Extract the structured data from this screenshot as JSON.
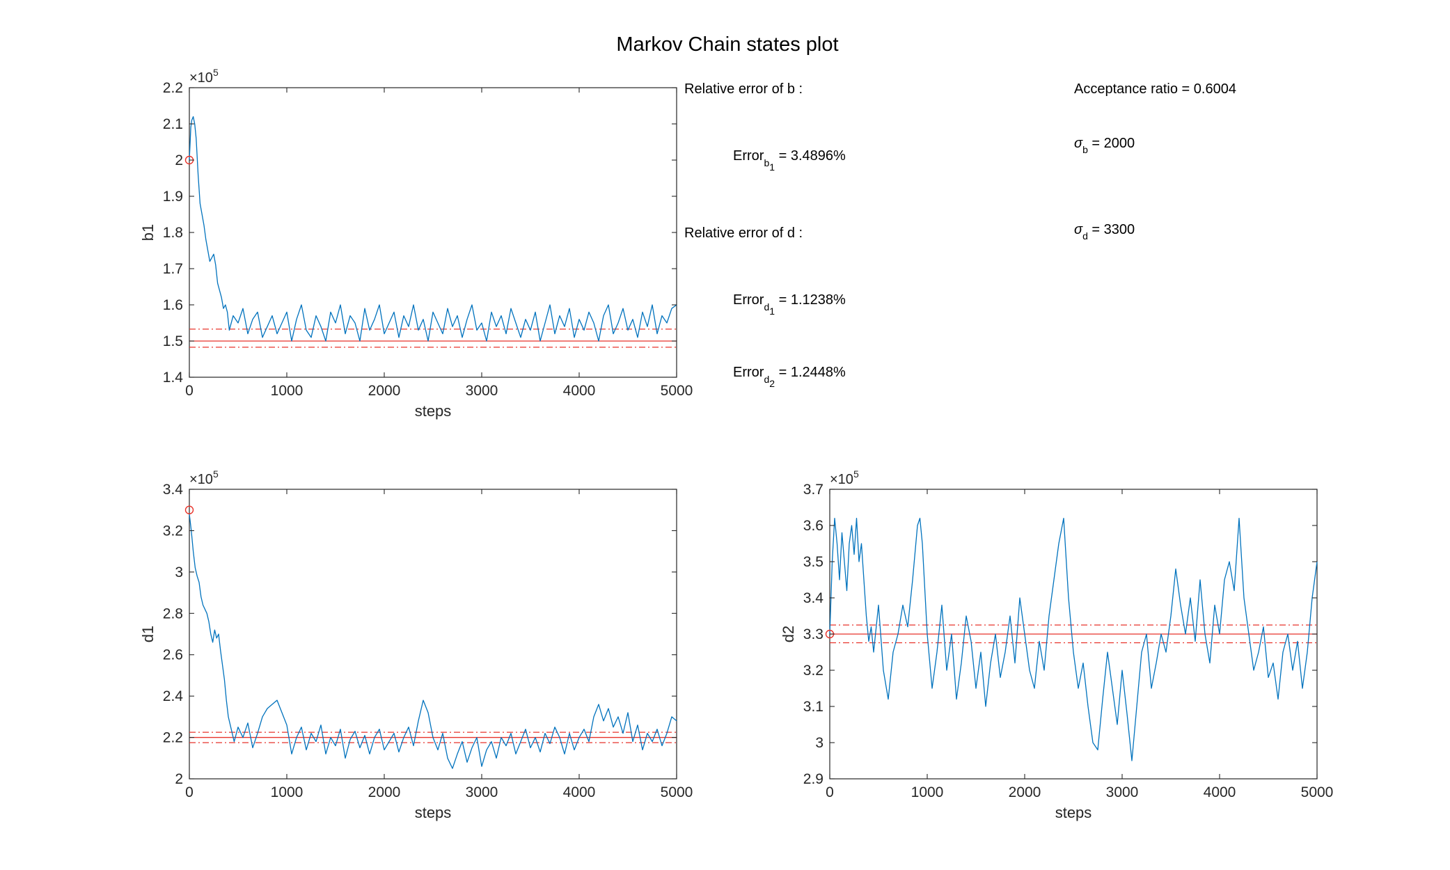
{
  "title": "Markov Chain states plot",
  "colors": {
    "trace": "#0072BD",
    "reference": "#E8332A",
    "axis": "#262626"
  },
  "annotations": {
    "rel_err_b": "Relative error of b :",
    "err_b1_base": "Error",
    "err_b1_sub": "b",
    "err_b1_subsub": "1",
    "err_b1_value": " = 3.4896%",
    "rel_err_d": "Relative error of d :",
    "err_d1_base": "Error",
    "err_d1_sub": "d",
    "err_d1_subsub": "1",
    "err_d1_value": " = 1.1238%",
    "err_d2_base": "Error",
    "err_d2_sub": "d",
    "err_d2_subsub": "2",
    "err_d2_value": " = 1.2448%",
    "acceptance": "Acceptance ratio = 0.6004",
    "sigma_b_symbol": "σ",
    "sigma_b_sub": "b",
    "sigma_b_value": " = 2000",
    "sigma_d_symbol": "σ",
    "sigma_d_sub": "d",
    "sigma_d_value": " = 3300"
  },
  "chart_data": [
    {
      "id": "b1",
      "type": "line",
      "xlabel": "steps",
      "ylabel": "b1",
      "xlim": [
        0,
        5000
      ],
      "ylim": [
        1.4,
        2.2
      ],
      "xticks": [
        0,
        1000,
        2000,
        3000,
        4000,
        5000
      ],
      "yticks": [
        1.4,
        1.5,
        1.6,
        1.7,
        1.8,
        1.9,
        2.0,
        2.1,
        2.2
      ],
      "ytick_labels": [
        "1.4",
        "1.5",
        "1.6",
        "1.7",
        "1.8",
        "1.9",
        "2",
        "2.1",
        "2.2"
      ],
      "y_exponent_base": "×10",
      "y_exponent": "5",
      "initial_point": [
        0,
        2.0
      ],
      "true_value": 1.5,
      "band": [
        1.483,
        1.533
      ],
      "series": [
        {
          "x": [
            0,
            15,
            25,
            40,
            55,
            70,
            90,
            110,
            130,
            150,
            170,
            190,
            210,
            230,
            250,
            270,
            290,
            310,
            330,
            350,
            370,
            390,
            410,
            450,
            500,
            550,
            600,
            650,
            700,
            750,
            800,
            850,
            900,
            950,
            1000,
            1050,
            1100,
            1150,
            1200,
            1250,
            1300,
            1350,
            1400,
            1450,
            1500,
            1550,
            1600,
            1650,
            1700,
            1750,
            1800,
            1850,
            1900,
            1950,
            2000,
            2050,
            2100,
            2150,
            2200,
            2250,
            2300,
            2350,
            2400,
            2450,
            2500,
            2550,
            2600,
            2650,
            2700,
            2750,
            2800,
            2850,
            2900,
            2950,
            3000,
            3050,
            3100,
            3150,
            3200,
            3250,
            3300,
            3350,
            3400,
            3450,
            3500,
            3550,
            3600,
            3650,
            3700,
            3750,
            3800,
            3850,
            3900,
            3950,
            4000,
            4050,
            4100,
            4150,
            4200,
            4250,
            4300,
            4350,
            4400,
            4450,
            4500,
            4550,
            4600,
            4650,
            4700,
            4750,
            4800,
            4850,
            4900,
            4950,
            5000
          ],
          "y": [
            2.0,
            2.09,
            2.11,
            2.12,
            2.1,
            2.06,
            1.96,
            1.88,
            1.85,
            1.82,
            1.78,
            1.75,
            1.72,
            1.73,
            1.74,
            1.71,
            1.66,
            1.64,
            1.62,
            1.59,
            1.6,
            1.58,
            1.53,
            1.57,
            1.55,
            1.59,
            1.52,
            1.56,
            1.58,
            1.51,
            1.54,
            1.57,
            1.52,
            1.55,
            1.58,
            1.5,
            1.56,
            1.6,
            1.53,
            1.51,
            1.57,
            1.54,
            1.5,
            1.58,
            1.55,
            1.6,
            1.52,
            1.57,
            1.55,
            1.5,
            1.59,
            1.53,
            1.56,
            1.6,
            1.52,
            1.55,
            1.58,
            1.51,
            1.57,
            1.54,
            1.6,
            1.53,
            1.56,
            1.5,
            1.58,
            1.55,
            1.52,
            1.59,
            1.54,
            1.57,
            1.51,
            1.56,
            1.6,
            1.53,
            1.55,
            1.5,
            1.58,
            1.54,
            1.57,
            1.52,
            1.59,
            1.55,
            1.51,
            1.56,
            1.53,
            1.58,
            1.5,
            1.55,
            1.6,
            1.52,
            1.57,
            1.54,
            1.59,
            1.51,
            1.56,
            1.53,
            1.58,
            1.55,
            1.5,
            1.57,
            1.6,
            1.52,
            1.55,
            1.59,
            1.53,
            1.56,
            1.51,
            1.58,
            1.54,
            1.6,
            1.52,
            1.57,
            1.55,
            1.59,
            1.6
          ]
        }
      ]
    },
    {
      "id": "d1",
      "type": "line",
      "xlabel": "steps",
      "ylabel": "d1",
      "xlim": [
        0,
        5000
      ],
      "ylim": [
        2.0,
        3.4
      ],
      "xticks": [
        0,
        1000,
        2000,
        3000,
        4000,
        5000
      ],
      "yticks": [
        2.0,
        2.2,
        2.4,
        2.6,
        2.8,
        3.0,
        3.2,
        3.4
      ],
      "ytick_labels": [
        "2",
        "2.2",
        "2.4",
        "2.6",
        "2.8",
        "3",
        "3.2",
        "3.4"
      ],
      "y_exponent_base": "×10",
      "y_exponent": "5",
      "initial_point": [
        0,
        3.3
      ],
      "true_value": 2.2,
      "band": [
        2.175,
        2.225
      ],
      "series": [
        {
          "x": [
            0,
            20,
            40,
            60,
            80,
            100,
            120,
            140,
            160,
            180,
            200,
            220,
            240,
            260,
            280,
            300,
            320,
            340,
            360,
            380,
            400,
            430,
            460,
            500,
            550,
            600,
            650,
            700,
            750,
            800,
            850,
            900,
            950,
            1000,
            1050,
            1100,
            1150,
            1200,
            1250,
            1300,
            1350,
            1400,
            1450,
            1500,
            1550,
            1600,
            1650,
            1700,
            1750,
            1800,
            1850,
            1900,
            1950,
            2000,
            2050,
            2100,
            2150,
            2200,
            2250,
            2300,
            2350,
            2400,
            2450,
            2500,
            2550,
            2600,
            2650,
            2700,
            2750,
            2800,
            2850,
            2900,
            2950,
            3000,
            3050,
            3100,
            3150,
            3200,
            3250,
            3300,
            3350,
            3400,
            3450,
            3500,
            3550,
            3600,
            3650,
            3700,
            3750,
            3800,
            3850,
            3900,
            3950,
            4000,
            4050,
            4100,
            4150,
            4200,
            4250,
            4300,
            4350,
            4400,
            4450,
            4500,
            4550,
            4600,
            4650,
            4700,
            4750,
            4800,
            4850,
            4900,
            4950,
            5000
          ],
          "y": [
            3.28,
            3.2,
            3.1,
            3.02,
            2.98,
            2.95,
            2.88,
            2.84,
            2.82,
            2.8,
            2.76,
            2.7,
            2.66,
            2.72,
            2.68,
            2.7,
            2.62,
            2.55,
            2.48,
            2.38,
            2.3,
            2.24,
            2.18,
            2.25,
            2.2,
            2.27,
            2.15,
            2.22,
            2.3,
            2.34,
            2.36,
            2.38,
            2.32,
            2.26,
            2.12,
            2.2,
            2.25,
            2.14,
            2.22,
            2.18,
            2.26,
            2.12,
            2.2,
            2.16,
            2.24,
            2.1,
            2.19,
            2.23,
            2.15,
            2.21,
            2.12,
            2.2,
            2.24,
            2.14,
            2.18,
            2.22,
            2.13,
            2.2,
            2.25,
            2.16,
            2.28,
            2.38,
            2.32,
            2.2,
            2.14,
            2.22,
            2.1,
            2.05,
            2.12,
            2.18,
            2.08,
            2.15,
            2.2,
            2.06,
            2.14,
            2.18,
            2.1,
            2.2,
            2.16,
            2.22,
            2.12,
            2.18,
            2.24,
            2.15,
            2.2,
            2.13,
            2.22,
            2.17,
            2.25,
            2.2,
            2.12,
            2.22,
            2.14,
            2.2,
            2.24,
            2.18,
            2.3,
            2.36,
            2.28,
            2.34,
            2.25,
            2.3,
            2.22,
            2.32,
            2.18,
            2.26,
            2.14,
            2.22,
            2.18,
            2.24,
            2.16,
            2.22,
            2.3,
            2.28
          ]
        }
      ]
    },
    {
      "id": "d2",
      "type": "line",
      "xlabel": "steps",
      "ylabel": "d2",
      "xlim": [
        0,
        5000
      ],
      "ylim": [
        2.9,
        3.7
      ],
      "xticks": [
        0,
        1000,
        2000,
        3000,
        4000,
        5000
      ],
      "yticks": [
        2.9,
        3.0,
        3.1,
        3.2,
        3.3,
        3.4,
        3.5,
        3.6,
        3.7
      ],
      "ytick_labels": [
        "2.9",
        "3",
        "3.1",
        "3.2",
        "3.3",
        "3.4",
        "3.5",
        "3.6",
        "3.7"
      ],
      "y_exponent_base": "×10",
      "y_exponent": "5",
      "initial_point": [
        0,
        3.3
      ],
      "true_value": 3.3,
      "band": [
        3.276,
        3.325
      ],
      "series": [
        {
          "x": [
            0,
            25,
            50,
            75,
            100,
            125,
            150,
            175,
            200,
            225,
            250,
            275,
            300,
            325,
            350,
            375,
            400,
            425,
            450,
            500,
            550,
            600,
            650,
            700,
            750,
            800,
            850,
            900,
            925,
            950,
            1000,
            1050,
            1100,
            1150,
            1200,
            1250,
            1300,
            1350,
            1400,
            1450,
            1500,
            1550,
            1600,
            1650,
            1700,
            1750,
            1800,
            1850,
            1900,
            1950,
            2000,
            2050,
            2100,
            2150,
            2200,
            2250,
            2300,
            2350,
            2400,
            2450,
            2500,
            2550,
            2600,
            2650,
            2700,
            2750,
            2800,
            2850,
            2900,
            2950,
            3000,
            3050,
            3100,
            3150,
            3200,
            3250,
            3300,
            3350,
            3400,
            3450,
            3500,
            3550,
            3600,
            3650,
            3700,
            3750,
            3800,
            3850,
            3900,
            3950,
            4000,
            4050,
            4100,
            4150,
            4200,
            4250,
            4300,
            4350,
            4400,
            4450,
            4500,
            4550,
            4600,
            4650,
            4700,
            4750,
            4800,
            4850,
            4900,
            4950,
            5000
          ],
          "y": [
            3.3,
            3.5,
            3.62,
            3.55,
            3.45,
            3.58,
            3.5,
            3.42,
            3.55,
            3.6,
            3.52,
            3.62,
            3.5,
            3.55,
            3.45,
            3.35,
            3.28,
            3.32,
            3.25,
            3.38,
            3.2,
            3.12,
            3.25,
            3.3,
            3.38,
            3.32,
            3.45,
            3.6,
            3.62,
            3.55,
            3.3,
            3.15,
            3.25,
            3.38,
            3.2,
            3.3,
            3.12,
            3.22,
            3.35,
            3.28,
            3.15,
            3.25,
            3.1,
            3.22,
            3.3,
            3.18,
            3.25,
            3.35,
            3.22,
            3.4,
            3.3,
            3.2,
            3.15,
            3.28,
            3.2,
            3.35,
            3.45,
            3.55,
            3.62,
            3.4,
            3.25,
            3.15,
            3.22,
            3.1,
            3.0,
            2.98,
            3.12,
            3.25,
            3.15,
            3.05,
            3.2,
            3.08,
            2.95,
            3.1,
            3.25,
            3.3,
            3.15,
            3.22,
            3.3,
            3.25,
            3.35,
            3.48,
            3.38,
            3.3,
            3.4,
            3.28,
            3.45,
            3.3,
            3.22,
            3.38,
            3.3,
            3.45,
            3.5,
            3.42,
            3.62,
            3.4,
            3.3,
            3.2,
            3.25,
            3.32,
            3.18,
            3.22,
            3.12,
            3.25,
            3.3,
            3.2,
            3.28,
            3.15,
            3.25,
            3.4,
            3.5
          ]
        }
      ]
    }
  ]
}
